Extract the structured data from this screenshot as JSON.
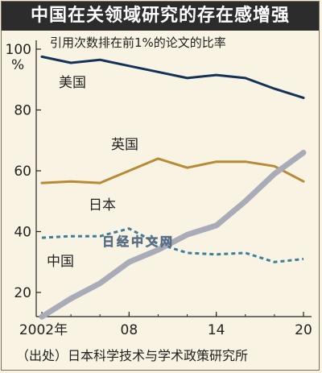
{
  "title": "中国在关领域研究的存在感增强",
  "source": "（出处）日本科学技术与学术政策研究所",
  "watermark": "日经中文网",
  "chart_data": {
    "type": "line",
    "subtitle": "引用次数排在前1%的论文的比率",
    "y_unit": "%",
    "ylim": [
      10,
      100
    ],
    "yticks": [
      20,
      40,
      60,
      80,
      100
    ],
    "xlim": [
      2002,
      2020
    ],
    "xticks": [
      {
        "value": 2002,
        "label": "2002年"
      },
      {
        "value": 2008,
        "label": "08"
      },
      {
        "value": 2014,
        "label": "14"
      },
      {
        "value": 2020,
        "label": "20"
      }
    ],
    "grid": false,
    "series": [
      {
        "name": "美国",
        "color": "#14315a",
        "style": "solid",
        "x": [
          2002,
          2004,
          2006,
          2008,
          2010,
          2012,
          2014,
          2016,
          2018,
          2020
        ],
        "values": [
          97.5,
          95.5,
          96.5,
          94.5,
          92.5,
          90.5,
          91.5,
          90.5,
          87,
          84
        ]
      },
      {
        "name": "英国",
        "color": "#b98a35",
        "style": "solid",
        "x": [
          2002,
          2004,
          2006,
          2008,
          2010,
          2012,
          2014,
          2016,
          2018,
          2020
        ],
        "values": [
          56,
          56.5,
          56,
          60,
          64,
          61,
          63,
          63,
          61.5,
          56.5
        ]
      },
      {
        "name": "日本",
        "color": "#3b7f9a",
        "style": "dashed",
        "x": [
          2002,
          2004,
          2006,
          2008,
          2010,
          2012,
          2014,
          2016,
          2018,
          2020
        ],
        "values": [
          38,
          38.5,
          38.5,
          41,
          36,
          33,
          32.5,
          33,
          30,
          31
        ]
      },
      {
        "name": "中国",
        "color": "#a9acb8",
        "style": "thick",
        "x": [
          2002,
          2004,
          2006,
          2008,
          2010,
          2012,
          2014,
          2016,
          2018,
          2020
        ],
        "values": [
          12,
          18,
          23,
          30,
          34,
          39,
          42,
          50,
          59,
          66
        ]
      }
    ]
  }
}
